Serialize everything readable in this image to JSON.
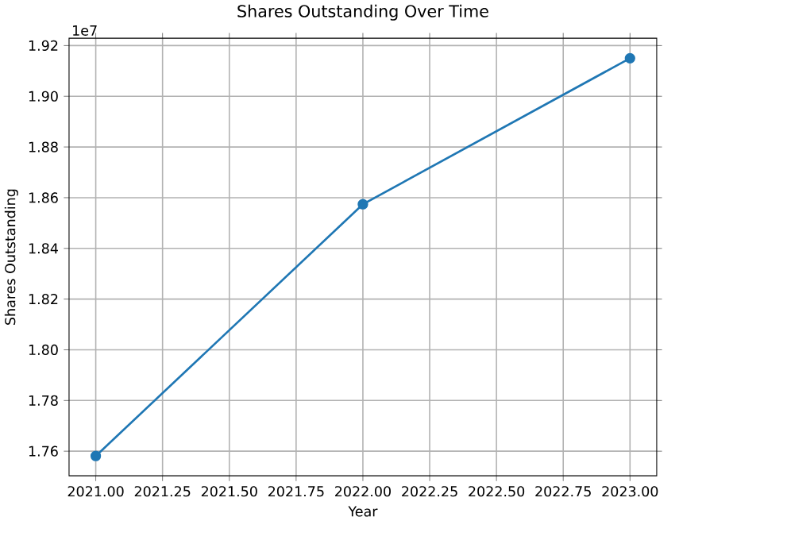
{
  "chart_data": {
    "type": "line",
    "title": "Shares Outstanding Over Time",
    "xlabel": "Year",
    "ylabel": "Shares Outstanding",
    "x": [
      2021,
      2022,
      2023
    ],
    "series": [
      {
        "color": "#1f77b4",
        "values": [
          1.7581,
          1.8574,
          1.915
        ]
      }
    ],
    "xlim": [
      2020.9,
      2023.1
    ],
    "ylim": [
      1.7503,
      1.9229
    ],
    "xticks": [
      {
        "value": 2021,
        "label": "2021.00"
      },
      {
        "value": 2021.25,
        "label": "2021.25"
      },
      {
        "value": 2021.5,
        "label": "2021.50"
      },
      {
        "value": 2021.75,
        "label": "2021.75"
      },
      {
        "value": 2022,
        "label": "2022.00"
      },
      {
        "value": 2022.25,
        "label": "2022.25"
      },
      {
        "value": 2022.5,
        "label": "2022.50"
      },
      {
        "value": 2022.75,
        "label": "2022.75"
      },
      {
        "value": 2023,
        "label": "2023.00"
      }
    ],
    "yticks": [
      1.76,
      1.78,
      {
        "value": 1.8,
        "label": "1.80"
      },
      1.82,
      1.84,
      1.86,
      1.88,
      {
        "value": 1.9,
        "label": "1.90"
      },
      1.92
    ],
    "annotations": [
      "1e7"
    ],
    "grid": true,
    "marker": "circle",
    "line_style": "solid"
  }
}
